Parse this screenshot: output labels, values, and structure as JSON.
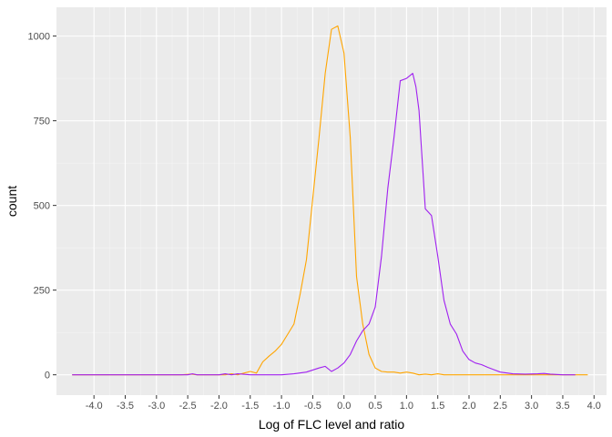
{
  "chart_data": {
    "type": "line",
    "title": "",
    "xlabel": "Log of FLC level and ratio",
    "ylabel": "count",
    "xlim": [
      -4.6,
      4.2
    ],
    "ylim": [
      -60,
      1085
    ],
    "grid": true,
    "background": "#EBEBEB",
    "x_ticks": [
      -4.0,
      -3.5,
      -3.0,
      -2.5,
      -2.0,
      -1.5,
      -1.0,
      -0.5,
      0.0,
      0.5,
      1.0,
      1.5,
      2.0,
      2.5,
      3.0,
      3.5,
      4.0
    ],
    "x_tick_labels": [
      "-4.0",
      "-3.5",
      "-3.0",
      "-2.5",
      "-2.0",
      "-1.5",
      "-1.0",
      "-0.5",
      "0.0",
      "0.5",
      "1.0",
      "1.5",
      "2.0",
      "2.5",
      "3.0",
      "3.5",
      "4.0"
    ],
    "y_ticks": [
      0,
      250,
      500,
      750,
      1000
    ],
    "y_tick_labels": [
      "0",
      "250",
      "500",
      "750",
      "1000"
    ],
    "series": [
      {
        "color": "#FFA500",
        "x": [
          -4.35,
          -2.6,
          -2.45,
          -2.35,
          -1.9,
          -1.8,
          -1.7,
          -1.6,
          -1.5,
          -1.4,
          -1.3,
          -1.2,
          -1.1,
          -1.0,
          -0.9,
          -0.8,
          -0.7,
          -0.6,
          -0.5,
          -0.4,
          -0.3,
          -0.2,
          -0.1,
          0.0,
          0.1,
          0.2,
          0.3,
          0.4,
          0.5,
          0.6,
          0.7,
          0.8,
          0.9,
          1.0,
          1.1,
          1.2,
          1.3,
          1.4,
          1.5,
          1.6,
          1.7,
          2.0,
          3.0,
          3.9
        ],
        "y": [
          0,
          0,
          2,
          0,
          0,
          3,
          0,
          5,
          10,
          5,
          38,
          55,
          70,
          90,
          120,
          150,
          240,
          340,
          520,
          700,
          890,
          1020,
          1030,
          950,
          700,
          290,
          150,
          60,
          20,
          10,
          8,
          8,
          5,
          8,
          5,
          0,
          2,
          0,
          3,
          0,
          0,
          0,
          0,
          0
        ]
      },
      {
        "color": "#A020F0",
        "x": [
          -4.35,
          -2.5,
          -2.42,
          -2.35,
          -2.0,
          -1.9,
          -1.8,
          -1.7,
          -1.5,
          -1.3,
          -1.0,
          -0.8,
          -0.6,
          -0.4,
          -0.3,
          -0.2,
          -0.1,
          0.0,
          0.1,
          0.2,
          0.3,
          0.4,
          0.5,
          0.6,
          0.7,
          0.8,
          0.9,
          1.0,
          1.1,
          1.15,
          1.2,
          1.3,
          1.4,
          1.5,
          1.6,
          1.7,
          1.8,
          1.9,
          2.0,
          2.1,
          2.2,
          2.3,
          2.4,
          2.5,
          2.7,
          2.9,
          3.1,
          3.2,
          3.3,
          3.5,
          3.7
        ],
        "y": [
          0,
          0,
          3,
          0,
          0,
          3,
          0,
          3,
          0,
          0,
          0,
          3,
          8,
          20,
          25,
          10,
          20,
          35,
          60,
          100,
          130,
          150,
          200,
          350,
          550,
          700,
          868,
          875,
          890,
          850,
          780,
          490,
          470,
          350,
          220,
          150,
          120,
          70,
          45,
          35,
          30,
          22,
          15,
          8,
          3,
          2,
          3,
          4,
          2,
          0,
          0
        ]
      }
    ]
  }
}
